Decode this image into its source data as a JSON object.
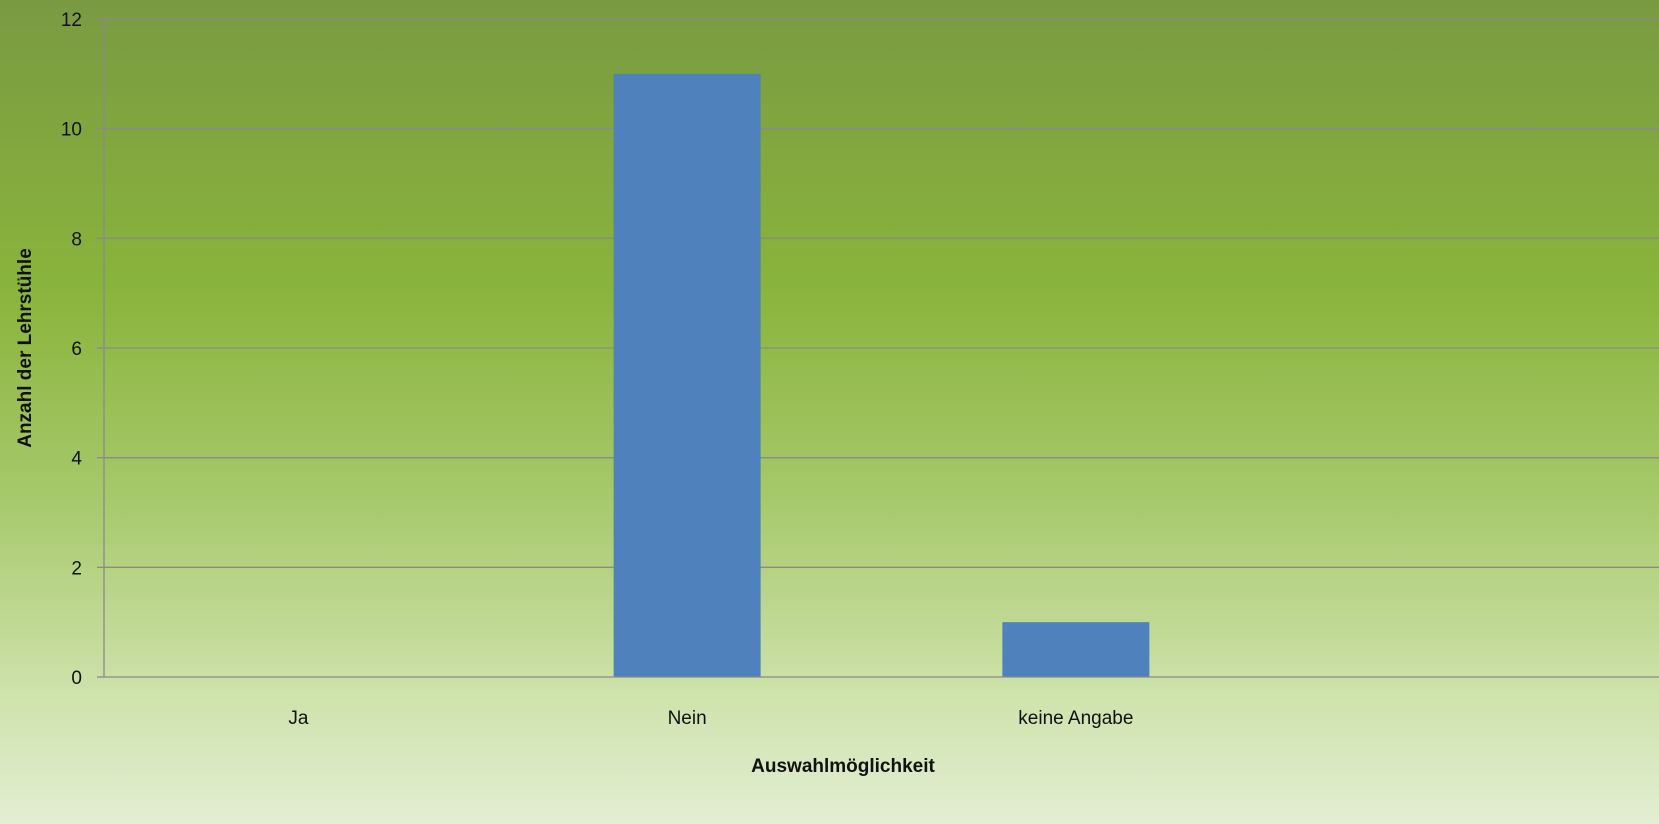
{
  "chart_data": {
    "type": "bar",
    "title": "",
    "categories": [
      "Ja",
      "Nein",
      "keine Angabe",
      ""
    ],
    "values": [
      0,
      11,
      1,
      null
    ],
    "xlabel": "Auswahlmöglichkeit",
    "ylabel": "Anzahl der Lehrstühle",
    "ylim": [
      0,
      12
    ],
    "yticks": [
      0,
      2,
      4,
      6,
      8,
      10,
      12
    ],
    "grid": true,
    "legend": "none",
    "colors": {
      "bar": "#4f81bd",
      "grid": "#8a8a8a",
      "axis": "#8a8a8a",
      "text": "#111111"
    }
  }
}
